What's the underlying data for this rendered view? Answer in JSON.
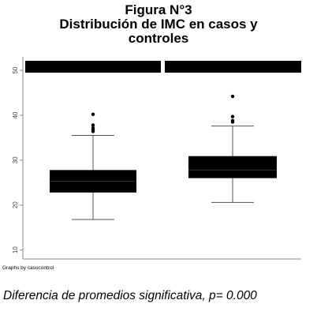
{
  "figure": {
    "title_line1": "Figura N°3",
    "title_line2": "Distribución de IMC en casos y",
    "title_line3": "controles",
    "caption": "Diferencia de promedios significativa, p= 0.000"
  },
  "chart_data": {
    "type": "boxplot",
    "title": "",
    "xlabel": "",
    "ylabel": "",
    "ylim": [
      8,
      53
    ],
    "yticks": [
      10,
      20,
      30,
      40,
      50
    ],
    "grid": false,
    "note": "Graphs by casocontrol",
    "panels": [
      {
        "label": "",
        "min": 16.8,
        "q1": 22.8,
        "median": 25.3,
        "q3": 27.8,
        "max": 35.5,
        "outliers": [
          36.4,
          36.8,
          37.2,
          37.8,
          40.2
        ]
      },
      {
        "label": "",
        "min": 20.6,
        "q1": 26.0,
        "median": 27.8,
        "q3": 30.9,
        "max": 37.6,
        "outliers": [
          38.5,
          38.8,
          39.7,
          44.2
        ]
      }
    ]
  }
}
